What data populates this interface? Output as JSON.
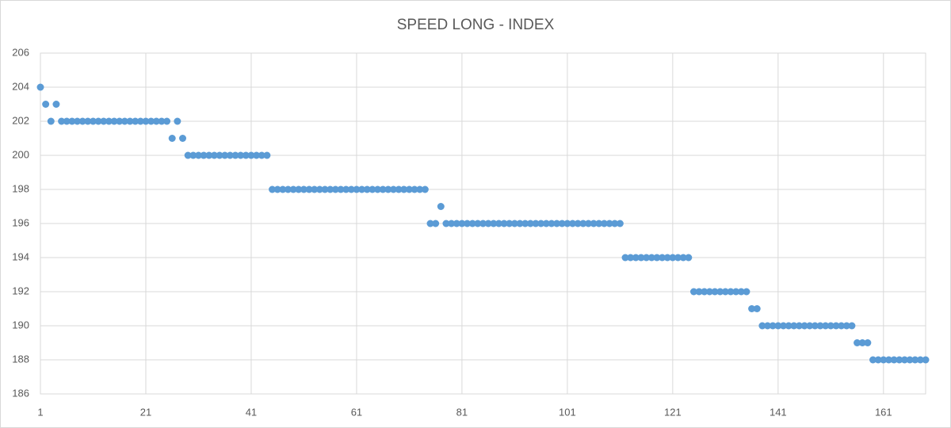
{
  "chart_data": {
    "type": "scatter",
    "title": "SPEED LONG - INDEX",
    "x": [
      1,
      2,
      3,
      4,
      5,
      6,
      7,
      8,
      9,
      10,
      11,
      12,
      13,
      14,
      15,
      16,
      17,
      18,
      19,
      20,
      21,
      22,
      23,
      24,
      25,
      26,
      27,
      28,
      29,
      30,
      31,
      32,
      33,
      34,
      35,
      36,
      37,
      38,
      39,
      40,
      41,
      42,
      43,
      44,
      45,
      46,
      47,
      48,
      49,
      50,
      51,
      52,
      53,
      54,
      55,
      56,
      57,
      58,
      59,
      60,
      61,
      62,
      63,
      64,
      65,
      66,
      67,
      68,
      69,
      70,
      71,
      72,
      73,
      74,
      75,
      76,
      77,
      78,
      79,
      80,
      81,
      82,
      83,
      84,
      85,
      86,
      87,
      88,
      89,
      90,
      91,
      92,
      93,
      94,
      95,
      96,
      97,
      98,
      99,
      100,
      101,
      102,
      103,
      104,
      105,
      106,
      107,
      108,
      109,
      110,
      111,
      112,
      113,
      114,
      115,
      116,
      117,
      118,
      119,
      120,
      121,
      122,
      123,
      124,
      125,
      126,
      127,
      128,
      129,
      130,
      131,
      132,
      133,
      134,
      135,
      136,
      137,
      138,
      139,
      140,
      141,
      142,
      143,
      144,
      145,
      146,
      147,
      148,
      149,
      150,
      151,
      152,
      153,
      154,
      155,
      156,
      157,
      158,
      159,
      160,
      161,
      162,
      163,
      164,
      165,
      166,
      167,
      168,
      169
    ],
    "values": [
      204,
      203,
      202,
      203,
      202,
      202,
      202,
      202,
      202,
      202,
      202,
      202,
      202,
      202,
      202,
      202,
      202,
      202,
      202,
      202,
      202,
      202,
      202,
      202,
      202,
      201,
      202,
      201,
      200,
      200,
      200,
      200,
      200,
      200,
      200,
      200,
      200,
      200,
      200,
      200,
      200,
      200,
      200,
      200,
      198,
      198,
      198,
      198,
      198,
      198,
      198,
      198,
      198,
      198,
      198,
      198,
      198,
      198,
      198,
      198,
      198,
      198,
      198,
      198,
      198,
      198,
      198,
      198,
      198,
      198,
      198,
      198,
      198,
      198,
      196,
      196,
      197,
      196,
      196,
      196,
      196,
      196,
      196,
      196,
      196,
      196,
      196,
      196,
      196,
      196,
      196,
      196,
      196,
      196,
      196,
      196,
      196,
      196,
      196,
      196,
      196,
      196,
      196,
      196,
      196,
      196,
      196,
      196,
      196,
      196,
      196,
      194,
      194,
      194,
      194,
      194,
      194,
      194,
      194,
      194,
      194,
      194,
      194,
      194,
      192,
      192,
      192,
      192,
      192,
      192,
      192,
      192,
      192,
      192,
      192,
      191,
      191,
      190,
      190,
      190,
      190,
      190,
      190,
      190,
      190,
      190,
      190,
      190,
      190,
      190,
      190,
      190,
      190,
      190,
      190,
      189,
      189,
      189,
      188,
      188,
      188,
      188,
      188,
      188,
      188,
      188,
      188,
      188,
      188
    ],
    "color": "#5b9bd5",
    "xlim": [
      1,
      169
    ],
    "xticks": [
      1,
      21,
      41,
      61,
      81,
      101,
      121,
      141,
      161
    ],
    "ylim": [
      186,
      206
    ],
    "yticks": [
      186,
      188,
      190,
      192,
      194,
      196,
      198,
      200,
      202,
      204,
      206
    ],
    "grid": true
  }
}
